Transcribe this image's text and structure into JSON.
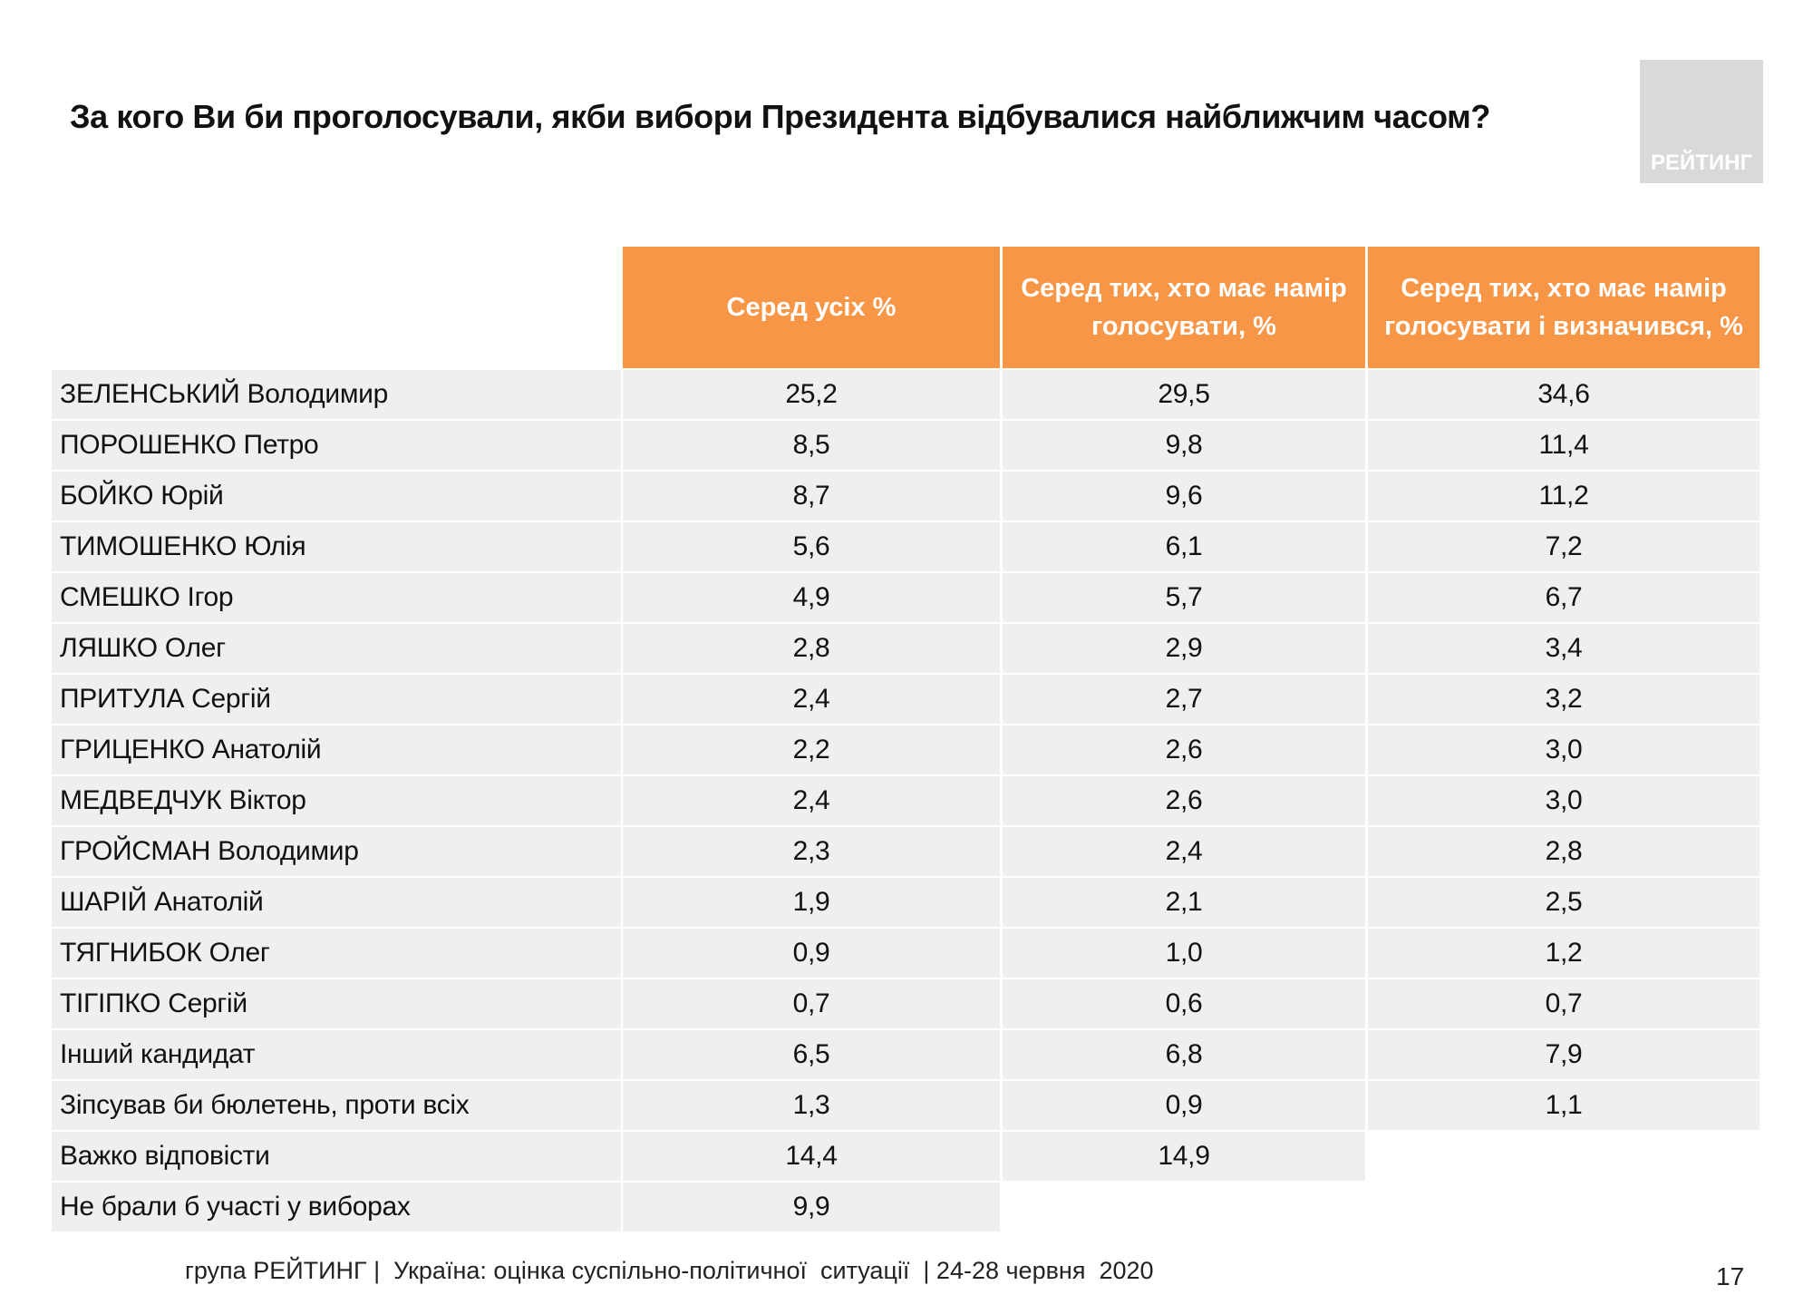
{
  "header": {
    "title": "За кого Ви би проголосували, якби вибори Президента відбувалися найближчим часом?",
    "logo": "РЕЙТИНГ"
  },
  "table": {
    "columns": [
      "Серед усіх %",
      "Серед тих, хто має намір голосувати, %",
      "Серед тих, хто має намір голосувати і визначився, %"
    ],
    "rows": [
      {
        "label": "ЗЕЛЕНСЬКИЙ Володимир",
        "values": [
          "25,2",
          "29,5",
          "34,6"
        ]
      },
      {
        "label": "ПОРОШЕНКО Петро",
        "values": [
          "8,5",
          "9,8",
          "11,4"
        ]
      },
      {
        "label": "БОЙКО Юрій",
        "values": [
          "8,7",
          "9,6",
          "11,2"
        ]
      },
      {
        "label": "ТИМОШЕНКО Юлія",
        "values": [
          "5,6",
          "6,1",
          "7,2"
        ]
      },
      {
        "label": "СМЕШКО Ігор",
        "values": [
          "4,9",
          "5,7",
          "6,7"
        ]
      },
      {
        "label": "ЛЯШКО Олег",
        "values": [
          "2,8",
          "2,9",
          "3,4"
        ]
      },
      {
        "label": "ПРИТУЛА Сергій",
        "values": [
          "2,4",
          "2,7",
          "3,2"
        ]
      },
      {
        "label": "ГРИЦЕНКО Анатолій",
        "values": [
          "2,2",
          "2,6",
          "3,0"
        ]
      },
      {
        "label": "МЕДВЕДЧУК Віктор",
        "values": [
          "2,4",
          "2,6",
          "3,0"
        ]
      },
      {
        "label": "ГРОЙСМАН Володимир",
        "values": [
          "2,3",
          "2,4",
          "2,8"
        ]
      },
      {
        "label": "ШАРІЙ Анатолій",
        "values": [
          "1,9",
          "2,1",
          "2,5"
        ]
      },
      {
        "label": "ТЯГНИБОК Олег",
        "values": [
          "0,9",
          "1,0",
          "1,2"
        ]
      },
      {
        "label": "ТІГІПКО Сергій",
        "values": [
          "0,7",
          "0,6",
          "0,7"
        ]
      },
      {
        "label": "Інший кандидат",
        "values": [
          "6,5",
          "6,8",
          "7,9"
        ]
      },
      {
        "label": "Зіпсував би бюлетень, проти всіх",
        "values": [
          "1,3",
          "0,9",
          "1,1"
        ]
      },
      {
        "label": "Важко відповісти",
        "values": [
          "14,4",
          "14,9"
        ]
      },
      {
        "label": "Не брали б участі у виборах",
        "values": [
          "9,9"
        ]
      }
    ]
  },
  "footer": {
    "source": "група РЕЙТИНГ |  Україна: оцінка суспільно-політичної  ситуації  | 24-28 червня  2020",
    "page": "17"
  }
}
